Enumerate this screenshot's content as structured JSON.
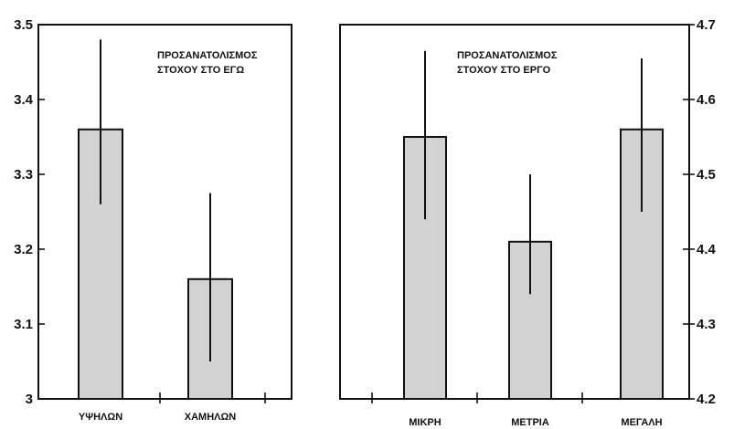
{
  "chart_data": [
    {
      "type": "bar",
      "title_lines": [
        "ΠΡΟΣΑΝΑΤΟΛΙΣΜΟΣ",
        "ΣΤΟΧΟΥ ΣΤΟ ΕΓΩ"
      ],
      "categories": [
        "ΥΨΗΛΩΝ",
        "ΧΑΜΗΛΩΝ"
      ],
      "values": [
        3.36,
        3.16
      ],
      "error_low": [
        3.26,
        3.05
      ],
      "error_high": [
        3.48,
        3.275
      ],
      "ylim": [
        3.0,
        3.5
      ],
      "yticks": [
        3.0,
        3.1,
        3.2,
        3.3,
        3.4,
        3.5
      ],
      "ytick_labels": [
        "3",
        "3.1",
        "3.2",
        "3.3",
        "3.4",
        "3.5"
      ],
      "yaxis_side": "left",
      "grid": false,
      "xlabel": "",
      "ylabel": ""
    },
    {
      "type": "bar",
      "title_lines": [
        "ΠΡΟΣΑΝΑΤΟΛΙΣΜΟΣ",
        "ΣΤΟΧΟΥ ΣΤΟ ΕΡΓΟ"
      ],
      "categories": [
        "ΜΙΚΡΗ",
        "ΜΕΤΡΙΑ",
        "ΜΕΓΑΛΗ"
      ],
      "values": [
        4.55,
        4.41,
        4.56
      ],
      "error_low": [
        4.44,
        4.34,
        4.45
      ],
      "error_high": [
        4.665,
        4.5,
        4.655
      ],
      "ylim": [
        4.2,
        4.7
      ],
      "yticks": [
        4.2,
        4.3,
        4.4,
        4.5,
        4.6,
        4.7
      ],
      "ytick_labels": [
        "4.2",
        "4.3",
        "4.4",
        "4.5",
        "4.6",
        "4.7"
      ],
      "yaxis_side": "right",
      "grid": false,
      "xlabel": "",
      "ylabel": ""
    }
  ]
}
